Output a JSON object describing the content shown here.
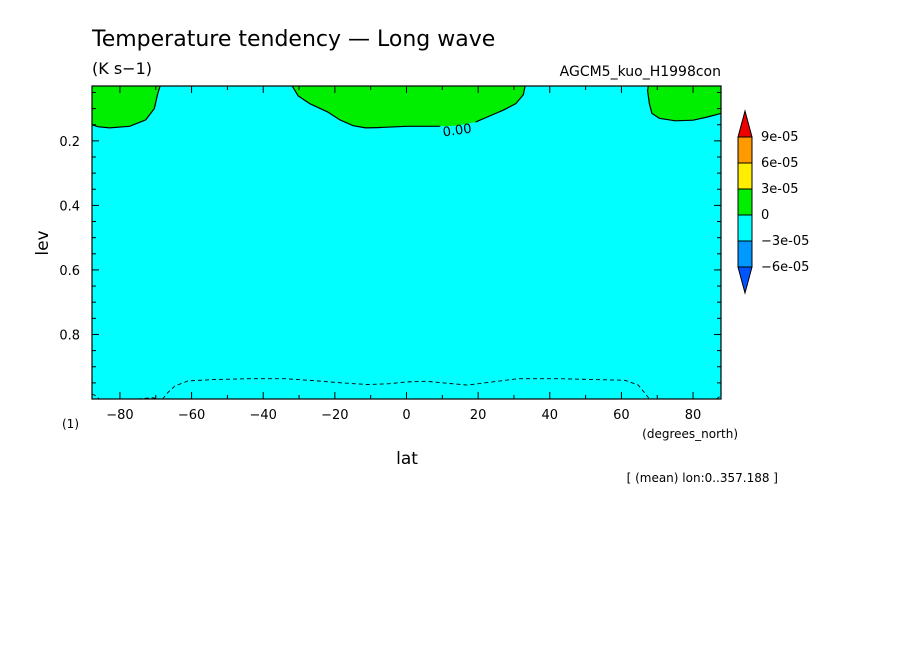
{
  "chart_data": {
    "type": "heatmap",
    "title": "Temperature tendency — Long wave",
    "units": "(K s−1)",
    "experiment": "AGCM5_kuo_H1998con",
    "xlabel": "lat",
    "xunits": "(degrees_north)",
    "ylabel": "lev",
    "yunits": "(1)",
    "xlim": [
      -87.8,
      87.8
    ],
    "ylim": [
      1.0,
      0.03
    ],
    "x_ticks": [
      -80,
      -60,
      -40,
      -20,
      0,
      20,
      40,
      60,
      80
    ],
    "x_tick_labels": [
      "−80",
      "−60",
      "−40",
      "−20",
      "0",
      "20",
      "40",
      "60",
      "80"
    ],
    "y_ticks": [
      0.2,
      0.4,
      0.6,
      0.8
    ],
    "y_tick_labels": [
      "0.2",
      "0.4",
      "0.6",
      "0.8"
    ],
    "annotation": "[ (mean) lon:0..357.188 ]",
    "background_level_color": "#00ffff",
    "regions": [
      {
        "level": "0 to 3e-05",
        "color": "#00ee00",
        "points": [
          [
            -87.8,
            0.03
          ],
          [
            -68.8,
            0.03
          ],
          [
            -69.5,
            0.055
          ],
          [
            -70.4,
            0.1
          ],
          [
            -72.8,
            0.135
          ],
          [
            -77.3,
            0.155
          ],
          [
            -82.9,
            0.16
          ],
          [
            -86.2,
            0.156
          ],
          [
            -87.8,
            0.15
          ]
        ]
      },
      {
        "level": "0 to 3e-05",
        "color": "#00ee00",
        "points": [
          [
            -31.9,
            0.03
          ],
          [
            -30.3,
            0.06
          ],
          [
            -27.0,
            0.085
          ],
          [
            -22.1,
            0.11
          ],
          [
            -18.6,
            0.135
          ],
          [
            -14.9,
            0.153
          ],
          [
            -11.4,
            0.16
          ],
          [
            -8.0,
            0.159
          ],
          [
            0,
            0.155
          ],
          [
            5.6,
            0.155
          ],
          [
            9.4,
            0.155
          ],
          [
            13.8,
            0.153
          ],
          [
            19.3,
            0.142
          ],
          [
            23.2,
            0.123
          ],
          [
            27.0,
            0.105
          ],
          [
            30.5,
            0.085
          ],
          [
            32.6,
            0.057
          ],
          [
            33.1,
            0.03
          ]
        ]
      },
      {
        "level": "0 to 3e-05",
        "color": "#00ee00",
        "points": [
          [
            67.5,
            0.03
          ],
          [
            87.8,
            0.03
          ],
          [
            87.8,
            0.115
          ],
          [
            84.0,
            0.126
          ],
          [
            80.0,
            0.136
          ],
          [
            75.0,
            0.138
          ],
          [
            70.6,
            0.13
          ],
          [
            68.5,
            0.115
          ],
          [
            67.8,
            0.085
          ],
          [
            67.3,
            0.045
          ]
        ]
      }
    ],
    "contours": [
      {
        "label": "0.00",
        "label_position": [
          14.1,
          0.165
        ],
        "style": "solid",
        "segments": [
          [
            [
              -87.8,
              0.15
            ],
            [
              -86.2,
              0.156
            ],
            [
              -82.9,
              0.16
            ],
            [
              -77.3,
              0.155
            ],
            [
              -72.8,
              0.135
            ],
            [
              -70.4,
              0.1
            ],
            [
              -69.5,
              0.055
            ],
            [
              -68.8,
              0.03
            ]
          ],
          [
            [
              -31.9,
              0.03
            ],
            [
              -30.3,
              0.06
            ],
            [
              -27.0,
              0.085
            ],
            [
              -22.1,
              0.11
            ],
            [
              -18.6,
              0.135
            ],
            [
              -14.9,
              0.153
            ],
            [
              -11.4,
              0.16
            ],
            [
              -8.0,
              0.159
            ],
            [
              0,
              0.155
            ],
            [
              5.6,
              0.155
            ],
            [
              9.4,
              0.155
            ]
          ],
          [
            [
              19.3,
              0.142
            ],
            [
              23.2,
              0.123
            ],
            [
              27.0,
              0.105
            ],
            [
              30.5,
              0.085
            ],
            [
              32.6,
              0.057
            ],
            [
              33.1,
              0.03
            ]
          ],
          [
            [
              67.5,
              0.03
            ],
            [
              67.3,
              0.045
            ],
            [
              67.8,
              0.085
            ],
            [
              68.5,
              0.115
            ],
            [
              70.6,
              0.13
            ],
            [
              75.0,
              0.138
            ],
            [
              80.0,
              0.136
            ],
            [
              84.0,
              0.126
            ],
            [
              87.8,
              0.115
            ]
          ]
        ]
      },
      {
        "label": "",
        "style": "dashed",
        "segments": [
          [
            [
              -68.1,
              1.0
            ],
            [
              -66.6,
              0.98
            ],
            [
              -64.7,
              0.96
            ],
            [
              -61.0,
              0.944
            ],
            [
              -54.0,
              0.94
            ],
            [
              -44.0,
              0.937
            ],
            [
              -34.0,
              0.937
            ],
            [
              -26.0,
              0.943
            ],
            [
              -18.0,
              0.95
            ],
            [
              -11.0,
              0.955
            ],
            [
              -5.0,
              0.953
            ],
            [
              0,
              0.947
            ],
            [
              5.6,
              0.945
            ],
            [
              12.0,
              0.952
            ],
            [
              17.0,
              0.957
            ],
            [
              24.0,
              0.947
            ],
            [
              31.0,
              0.937
            ],
            [
              43.0,
              0.937
            ],
            [
              53.0,
              0.94
            ],
            [
              61.0,
              0.942
            ],
            [
              64.7,
              0.957
            ],
            [
              66.6,
              0.983
            ],
            [
              67.8,
              1.0
            ]
          ],
          [
            [
              -87.8,
              0.985
            ],
            [
              -86.7,
              0.99
            ],
            [
              -85.8,
              1.0
            ]
          ],
          [
            [
              -75.0,
              1.0
            ],
            [
              -71.0,
              0.996
            ],
            [
              -69.0,
              1.0
            ]
          ],
          [
            [
              86.5,
              1.0
            ],
            [
              87.8,
              0.99
            ]
          ]
        ]
      }
    ],
    "colorbar": {
      "labels": [
        "9e-05",
        "6e-05",
        "3e-05",
        "0",
        "−3e-05",
        "−6e-05"
      ],
      "colors": [
        "#ee0000",
        "#ff9900",
        "#ffee00",
        "#00ee00",
        "#00ffff",
        "#0099ff",
        "#0055ff"
      ]
    }
  }
}
